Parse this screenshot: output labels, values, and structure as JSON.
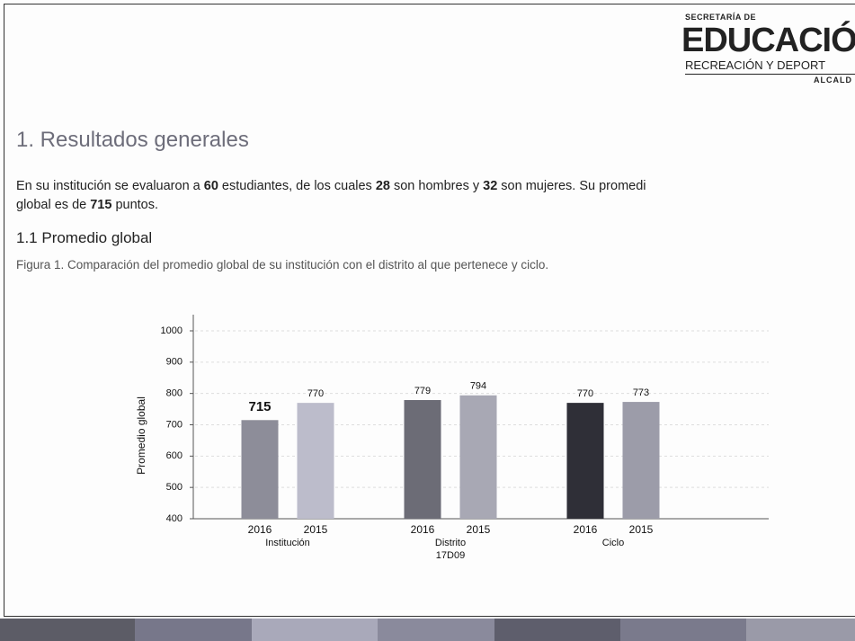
{
  "header": {
    "logo": {
      "top": "SECRETARÍA DE",
      "main": "EDUCACIÓN",
      "sub": "RECREACIÓN Y DEPORT",
      "bottom": "ALCALD"
    }
  },
  "section": {
    "title": "1. Resultados generales",
    "intro": [
      "En su institución se evaluaron a ",
      "60",
      " estudiantes, de los cuales ",
      "28",
      " son hombres y ",
      "32",
      " son mujeres. Su promedi",
      "global es de ",
      "715",
      " puntos."
    ]
  },
  "subsection": {
    "title": "1.1 Promedio global",
    "caption": "Figura 1. Comparación del promedio global de su institución con el distrito al que pertenece y ciclo."
  },
  "chart_data": {
    "type": "bar",
    "ylabel": "Promedio global",
    "categories": [
      [
        "Institución"
      ],
      [
        "Distrito",
        "17D09"
      ],
      [
        "Ciclo"
      ]
    ],
    "series": [
      {
        "name": "2016",
        "colors": [
          "#8d8d99",
          "#6c6c76",
          "#2f2f37"
        ],
        "values": [
          715,
          779,
          770
        ]
      },
      {
        "name": "2015",
        "colors": [
          "#bcbccb",
          "#a8a8b4",
          "#9c9ca9"
        ],
        "values": [
          770,
          794,
          773
        ]
      }
    ],
    "ylim": [
      400,
      1000
    ],
    "yticks": [
      400,
      500,
      600,
      700,
      800,
      900,
      1000
    ],
    "grid": true
  }
}
